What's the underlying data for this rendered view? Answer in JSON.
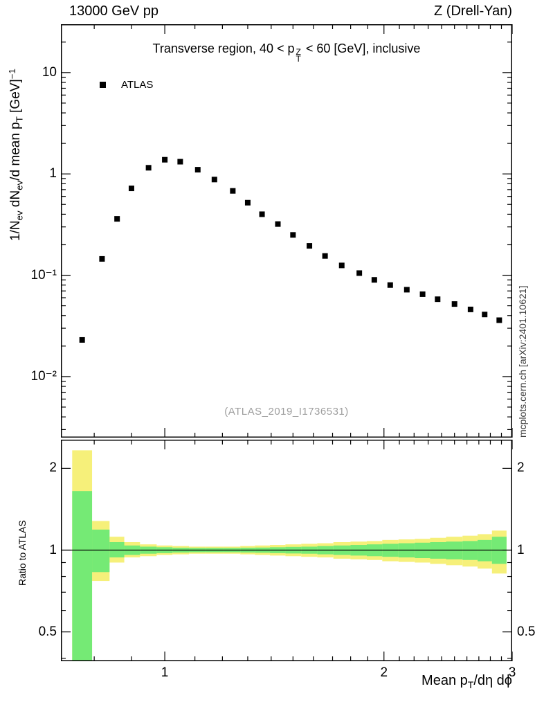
{
  "header": {
    "left": "13000 GeV pp",
    "right": "Z (Drell-Yan)"
  },
  "main_panel": {
    "title": {
      "pre": "Transverse region, 40 < p",
      "sup": "Z",
      "sub": "T",
      "post": " < 60 [GeV], inclusive"
    },
    "legend_label": "ATLAS",
    "watermark": "(ATLAS_2019_I1736531)",
    "ylabel": {
      "p1": "1/N",
      "s1": "ev",
      "p2": " dN",
      "s2": "ev",
      "p3": "/d mean p",
      "s3": "T",
      "p4": " [GeV]",
      "sup": "−1"
    },
    "yticks": [
      {
        "v": 10,
        "label": "10"
      },
      {
        "v": 1,
        "label": "1"
      },
      {
        "v": 0.1,
        "label": "10⁻¹"
      },
      {
        "v": 0.01,
        "label": "10⁻²"
      }
    ]
  },
  "ratio_panel": {
    "ylabel": "Ratio to ATLAS",
    "yticks": [
      {
        "v": 2,
        "label": "2"
      },
      {
        "v": 1,
        "label": "1"
      },
      {
        "v": 0.5,
        "label": "0.5"
      }
    ]
  },
  "xaxis": {
    "label": {
      "p1": "Mean p",
      "s1": "T",
      "p2": "/dη dϕ"
    },
    "ticks": [
      {
        "v": 1,
        "label": "1"
      },
      {
        "v": 2,
        "label": "2"
      },
      {
        "v": 3,
        "label": "3"
      }
    ]
  },
  "side_note": "mcplots.cern.ch [arXiv:2401.10621]",
  "chart_data": {
    "type": "scatter",
    "title": "Transverse region, 40 < pT(Z) < 60 [GeV], inclusive",
    "xlabel": "Mean pT/dη dϕ",
    "ylabel": "1/Nev dNev/d mean pT [GeV]^-1",
    "xscale": "log",
    "yscale": "log",
    "xlim": [
      0.72,
      3.0
    ],
    "ylim": [
      0.0025,
      30
    ],
    "legend_position": "top-left",
    "grid": false,
    "series": [
      {
        "name": "ATLAS",
        "marker": "filled-square",
        "color": "#000000",
        "x": [
          0.77,
          0.82,
          0.86,
          0.9,
          0.95,
          1.0,
          1.05,
          1.11,
          1.17,
          1.24,
          1.3,
          1.36,
          1.43,
          1.5,
          1.58,
          1.66,
          1.75,
          1.85,
          1.94,
          2.04,
          2.15,
          2.26,
          2.37,
          2.5,
          2.63,
          2.75,
          2.88
        ],
        "y": [
          0.023,
          0.145,
          0.36,
          0.72,
          1.15,
          1.38,
          1.32,
          1.1,
          0.88,
          0.68,
          0.52,
          0.4,
          0.32,
          0.25,
          0.195,
          0.155,
          0.125,
          0.105,
          0.09,
          0.08,
          0.072,
          0.065,
          0.058,
          0.052,
          0.046,
          0.041,
          0.036
        ]
      }
    ],
    "ratio": {
      "ylabel": "Ratio to ATLAS",
      "yscale": "log",
      "ylim": [
        0.39,
        2.55
      ],
      "reference_line": 1.0,
      "bands": [
        {
          "name": "total-uncertainty",
          "color": "#f6f07a",
          "lo": [
            0.33,
            0.77,
            0.9,
            0.94,
            0.95,
            0.96,
            0.965,
            0.97,
            0.97,
            0.97,
            0.965,
            0.96,
            0.955,
            0.95,
            0.945,
            0.94,
            0.93,
            0.925,
            0.92,
            0.91,
            0.905,
            0.9,
            0.89,
            0.88,
            0.87,
            0.855,
            0.82
          ],
          "hi": [
            2.33,
            1.28,
            1.12,
            1.07,
            1.05,
            1.04,
            1.035,
            1.03,
            1.03,
            1.03,
            1.035,
            1.04,
            1.045,
            1.05,
            1.055,
            1.06,
            1.07,
            1.075,
            1.08,
            1.09,
            1.095,
            1.1,
            1.11,
            1.12,
            1.13,
            1.145,
            1.18
          ]
        },
        {
          "name": "data-uncertainty",
          "color": "#75ea75",
          "lo": [
            0.33,
            0.83,
            0.94,
            0.96,
            0.97,
            0.975,
            0.98,
            0.982,
            0.982,
            0.982,
            0.98,
            0.978,
            0.975,
            0.972,
            0.97,
            0.965,
            0.96,
            0.955,
            0.95,
            0.945,
            0.94,
            0.935,
            0.93,
            0.925,
            0.92,
            0.91,
            0.89
          ],
          "hi": [
            1.65,
            1.19,
            1.07,
            1.04,
            1.03,
            1.025,
            1.02,
            1.018,
            1.018,
            1.018,
            1.02,
            1.022,
            1.025,
            1.028,
            1.03,
            1.035,
            1.04,
            1.045,
            1.05,
            1.055,
            1.06,
            1.065,
            1.07,
            1.075,
            1.08,
            1.09,
            1.12
          ]
        }
      ]
    }
  }
}
